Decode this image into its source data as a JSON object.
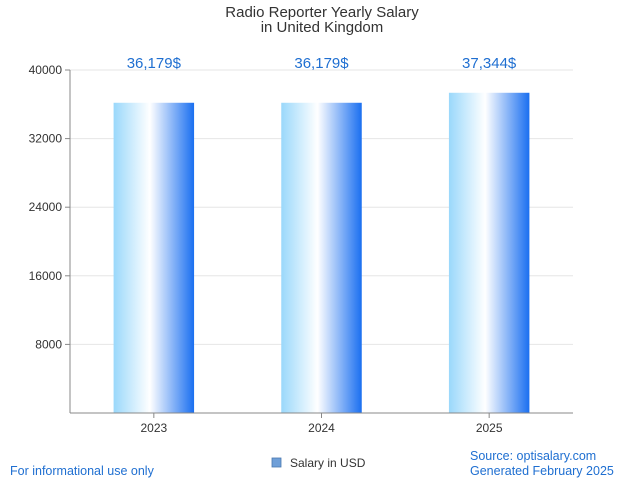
{
  "chart_data": {
    "type": "bar",
    "title_lines": [
      "Radio Reporter Yearly Salary",
      "in United Kingdom"
    ],
    "categories": [
      "2023",
      "2024",
      "2025"
    ],
    "series": [
      {
        "name": "Salary in USD",
        "values": [
          36179,
          36179,
          37344
        ],
        "data_labels": [
          "36,179$",
          "36,179$",
          "37,344$"
        ]
      }
    ],
    "y_ticks": [
      "8000",
      "16000",
      "24000",
      "32000",
      "40000"
    ],
    "ylim": [
      0,
      40000
    ],
    "grid": true,
    "legend_position": "bottom",
    "xlabel": "",
    "ylabel": ""
  },
  "footer": {
    "disclaimer": "For informational use only",
    "source": "Source: optisalary.com",
    "generated": "Generated February 2025"
  },
  "colors": {
    "bar_light": "#9ad8fb",
    "bar_white": "#ffffff",
    "bar_dark": "#1a6ff0",
    "accent_text": "#1f6fd1",
    "grid": "#e6e6e6",
    "axis": "#888888",
    "legend_swatch": "#6f9fd8"
  }
}
